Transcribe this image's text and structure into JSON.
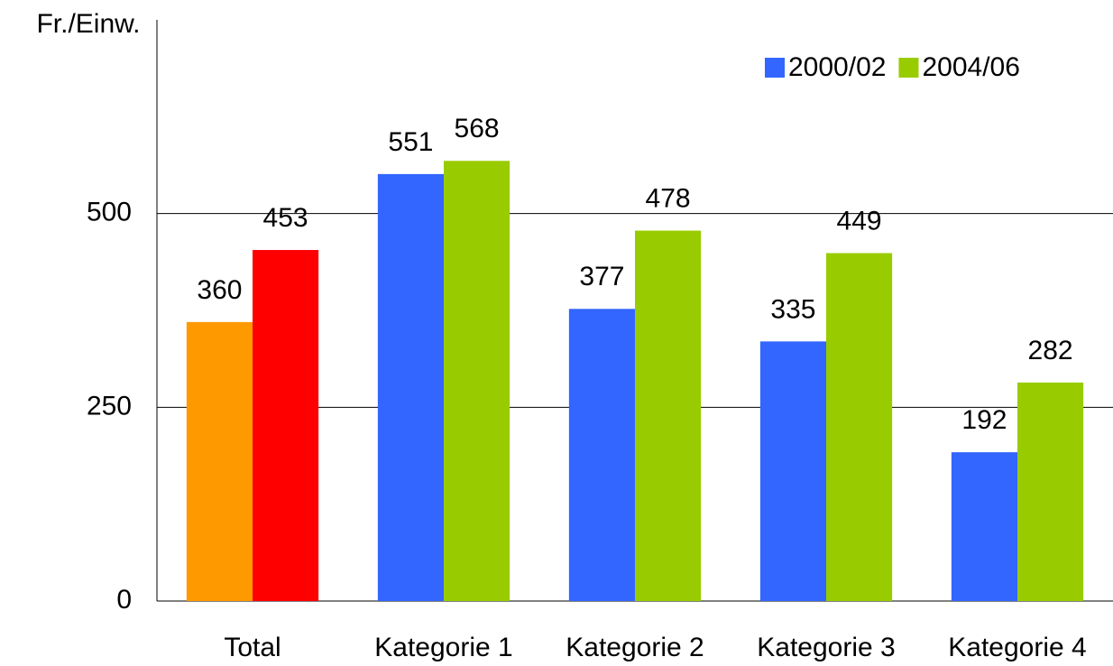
{
  "chart_data": {
    "type": "bar",
    "y_label": "Fr./Einw.",
    "categories": [
      "Total",
      "Kategorie 1",
      "Kategorie 2",
      "Kategorie 3",
      "Kategorie 4"
    ],
    "series": [
      {
        "name": "2000/02",
        "color": "#3366ff",
        "colors": [
          "#ff9900",
          "#3366ff",
          "#3366ff",
          "#3366ff",
          "#3366ff"
        ],
        "values": [
          360,
          551,
          377,
          335,
          192
        ]
      },
      {
        "name": "2004/06",
        "color": "#99cc00",
        "colors": [
          "#ff0000",
          "#99cc00",
          "#99cc00",
          "#99cc00",
          "#99cc00"
        ],
        "values": [
          453,
          568,
          478,
          449,
          282
        ]
      }
    ],
    "ylim": [
      0,
      750
    ],
    "yticks": [
      0,
      250,
      500
    ],
    "grid": true,
    "legend": "top-right"
  }
}
